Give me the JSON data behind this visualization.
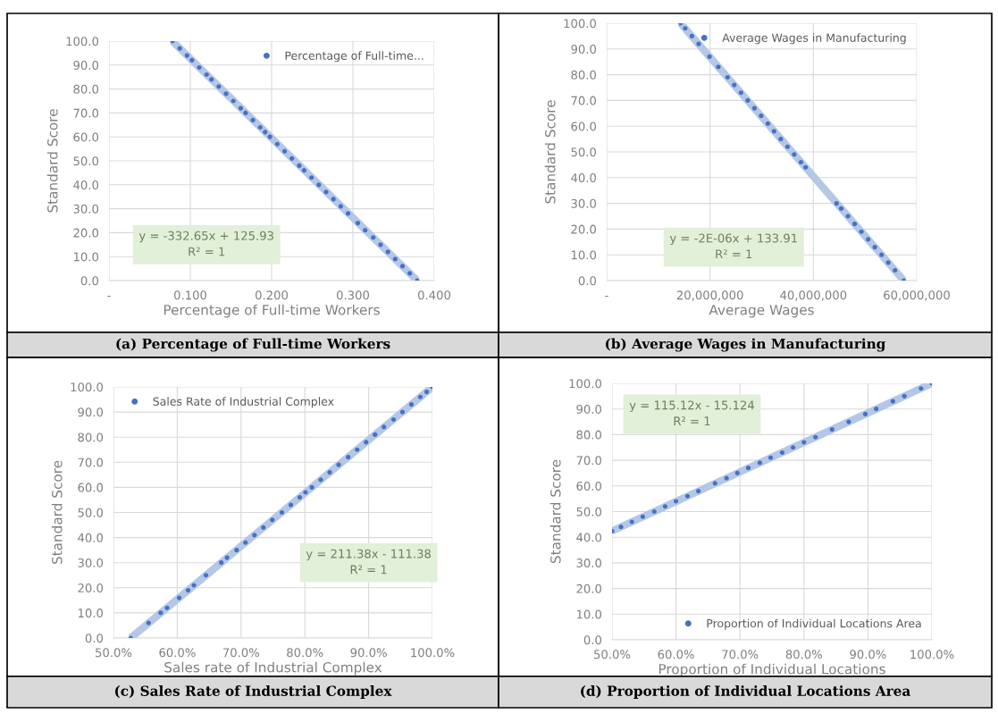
{
  "chart_data": [
    {
      "type": "scatter",
      "title": "(a) Percentage of Full-time Workers",
      "xlabel": "Percentage of Full-time Workers",
      "ylabel": "Standard Score",
      "xlim": [
        0,
        0.4
      ],
      "xticks": [
        {
          "value": 0,
          "label": "-"
        },
        {
          "value": 0.1,
          "label": "0.100"
        },
        {
          "value": 0.2,
          "label": "0.200"
        },
        {
          "value": 0.3,
          "label": "0.300"
        },
        {
          "value": 0.4,
          "label": "0.400"
        }
      ],
      "ylim": [
        0,
        100
      ],
      "yticks": [
        {
          "value": 0,
          "label": "0.0"
        },
        {
          "value": 10,
          "label": "10.0"
        },
        {
          "value": 20,
          "label": "20.0"
        },
        {
          "value": 30,
          "label": "30.0"
        },
        {
          "value": 40,
          "label": "40.0"
        },
        {
          "value": 50,
          "label": "50.0"
        },
        {
          "value": 60,
          "label": "60.0"
        },
        {
          "value": 70,
          "label": "70.0"
        },
        {
          "value": 80,
          "label": "80.0"
        },
        {
          "value": 90,
          "label": "90.0"
        },
        {
          "value": 100,
          "label": "100.0"
        }
      ],
      "grid": true,
      "legend": "top right",
      "marker": "circle",
      "annotations": [
        "y = -332.65x + 125.93",
        "R² = 1"
      ],
      "series": [
        {
          "type": "line",
          "marker": "none",
          "color": "#b4c7e7",
          "x": [
            0.078,
            0.379
          ],
          "values": [
            100,
            0
          ]
        },
        {
          "name": "Percentage of Full-time...",
          "color": "#4472c4",
          "x": [
            0.078,
            0.087,
            0.096,
            0.102,
            0.111,
            0.12,
            0.126,
            0.135,
            0.144,
            0.153,
            0.162,
            0.168,
            0.177,
            0.186,
            0.192,
            0.198,
            0.207,
            0.216,
            0.225,
            0.234,
            0.24,
            0.249,
            0.258,
            0.267,
            0.276,
            0.285,
            0.294,
            0.306,
            0.315,
            0.325,
            0.334,
            0.343,
            0.352,
            0.361,
            0.37,
            0.379
          ],
          "values": [
            100,
            97,
            94,
            92,
            89,
            86,
            84,
            81,
            78,
            75,
            72,
            70,
            67,
            64,
            62,
            60,
            57,
            54,
            51,
            48,
            46,
            43,
            40,
            37,
            34,
            31,
            28,
            24,
            21,
            18,
            15,
            12,
            9,
            6,
            3,
            0
          ]
        }
      ]
    },
    {
      "type": "scatter",
      "title": "(b) Average Wages in Manufacturing",
      "xlabel": "Average Wages",
      "ylabel": "Standard Score",
      "xlim": [
        0,
        60000000
      ],
      "xticks": [
        {
          "value": 0,
          "label": "-"
        },
        {
          "value": 20000000,
          "label": "20,000,000"
        },
        {
          "value": 40000000,
          "label": "40,000,000"
        },
        {
          "value": 60000000,
          "label": "60,000,000"
        }
      ],
      "ylim": [
        0,
        100
      ],
      "yticks": [
        {
          "value": 0,
          "label": "0.0"
        },
        {
          "value": 10,
          "label": "10.0"
        },
        {
          "value": 20,
          "label": "20.0"
        },
        {
          "value": 30,
          "label": "30.0"
        },
        {
          "value": 40,
          "label": "40.0"
        },
        {
          "value": 50,
          "label": "50.0"
        },
        {
          "value": 60,
          "label": "60.0"
        },
        {
          "value": 70,
          "label": "70.0"
        },
        {
          "value": 80,
          "label": "80.0"
        },
        {
          "value": 90,
          "label": "90.0"
        },
        {
          "value": 100,
          "label": "100.0"
        }
      ],
      "grid": true,
      "legend": "top right",
      "marker": "circle",
      "annotations": [
        "y = -2E-06x + 133.91",
        "R² = 1"
      ],
      "series": [
        {
          "type": "line",
          "marker": "none",
          "color": "#b4c7e7",
          "x": [
            14300000,
            57500000
          ],
          "values": [
            100,
            0
          ]
        },
        {
          "name": "Average Wages in Manufacturing",
          "color": "#4472c4",
          "x": [
            14300000,
            15200000,
            16500000,
            17800000,
            19900000,
            21600000,
            23400000,
            24700000,
            26000000,
            27300000,
            28600000,
            29900000,
            31200000,
            32400000,
            33700000,
            35000000,
            36300000,
            37600000,
            38500000,
            44500000,
            45400000,
            46700000,
            48000000,
            49300000,
            50600000,
            51900000,
            53200000,
            54500000,
            55800000,
            57500000
          ],
          "values": [
            100,
            98,
            95,
            92,
            87,
            83,
            79,
            76,
            73,
            70,
            67,
            64,
            61,
            58,
            55,
            52,
            49,
            46,
            44,
            30,
            28,
            25,
            22,
            19,
            16,
            13,
            10,
            7,
            4,
            0
          ]
        }
      ]
    },
    {
      "type": "scatter",
      "title": "(c) Sales Rate of Industrial Complex",
      "xlabel": "Sales rate of Industrial Complex",
      "ylabel": "Standard Score",
      "xlim": [
        0.5,
        1.0
      ],
      "xticks": [
        {
          "value": 0.5,
          "label": "50.0%"
        },
        {
          "value": 0.6,
          "label": "60.0%"
        },
        {
          "value": 0.7,
          "label": "70.0%"
        },
        {
          "value": 0.8,
          "label": "80.0%"
        },
        {
          "value": 0.9,
          "label": "90.0%"
        },
        {
          "value": 1.0,
          "label": "100.0%"
        }
      ],
      "ylim": [
        0,
        100
      ],
      "yticks": [
        {
          "value": 0,
          "label": "0.0"
        },
        {
          "value": 10,
          "label": "10.0"
        },
        {
          "value": 20,
          "label": "20.0"
        },
        {
          "value": 30,
          "label": "30.0"
        },
        {
          "value": 40,
          "label": "40.0"
        },
        {
          "value": 50,
          "label": "50.0"
        },
        {
          "value": 60,
          "label": "60.0"
        },
        {
          "value": 70,
          "label": "70.0"
        },
        {
          "value": 80,
          "label": "80.0"
        },
        {
          "value": 90,
          "label": "90.0"
        },
        {
          "value": 100,
          "label": "100.0"
        }
      ],
      "grid": true,
      "legend": "top left",
      "marker": "circle",
      "annotations": [
        "y = 211.38x - 111.38",
        "R² = 1"
      ],
      "series": [
        {
          "type": "line",
          "marker": "none",
          "color": "#b4c7e7",
          "x": [
            0.527,
            1.0
          ],
          "values": [
            0,
            100
          ]
        },
        {
          "name": "Sales Rate of Industrial Complex",
          "color": "#4472c4",
          "x": [
            0.527,
            0.555,
            0.574,
            0.584,
            0.603,
            0.617,
            0.626,
            0.645,
            0.669,
            0.678,
            0.693,
            0.707,
            0.721,
            0.735,
            0.749,
            0.764,
            0.778,
            0.792,
            0.801,
            0.811,
            0.825,
            0.839,
            0.853,
            0.868,
            0.882,
            0.896,
            0.91,
            0.924,
            0.939,
            0.953,
            0.967,
            0.981,
            0.991,
            1.0
          ],
          "values": [
            0,
            6,
            10,
            12,
            16,
            19,
            21,
            25,
            30,
            32,
            35,
            38,
            41,
            44,
            47,
            50,
            53,
            56,
            58,
            60,
            63,
            66,
            69,
            72,
            75,
            78,
            81,
            84,
            87,
            90,
            93,
            96,
            98,
            100
          ]
        }
      ]
    },
    {
      "type": "scatter",
      "title": "(d) Proportion of Individual Locations Area",
      "xlabel": "Proportion of Individual Locations",
      "ylabel": "Standard Score",
      "xlim": [
        0.5,
        1.0
      ],
      "xticks": [
        {
          "value": 0.5,
          "label": "50.0%"
        },
        {
          "value": 0.6,
          "label": "60.0%"
        },
        {
          "value": 0.7,
          "label": "70.0%"
        },
        {
          "value": 0.8,
          "label": "80.0%"
        },
        {
          "value": 0.9,
          "label": "90.0%"
        },
        {
          "value": 1.0,
          "label": "100.0%"
        }
      ],
      "ylim": [
        0,
        100
      ],
      "yticks": [
        {
          "value": 0,
          "label": "0.0"
        },
        {
          "value": 10,
          "label": "10.0"
        },
        {
          "value": 20,
          "label": "20.0"
        },
        {
          "value": 30,
          "label": "30.0"
        },
        {
          "value": 40,
          "label": "40.0"
        },
        {
          "value": 50,
          "label": "50.0"
        },
        {
          "value": 60,
          "label": "60.0"
        },
        {
          "value": 70,
          "label": "70.0"
        },
        {
          "value": 80,
          "label": "80.0"
        },
        {
          "value": 90,
          "label": "90.0"
        },
        {
          "value": 100,
          "label": "100.0"
        }
      ],
      "grid": true,
      "legend": "bottom right",
      "marker": "circle",
      "annotations": [
        "y = 115.12x - 15.124",
        "R² = 1"
      ],
      "series": [
        {
          "type": "line",
          "marker": "none",
          "color": "#b4c7e7",
          "x": [
            0.5,
            1.0
          ],
          "values": [
            42.4,
            100
          ]
        },
        {
          "name": "Proportion of Individual Locations Area",
          "color": "#4472c4",
          "x": [
            0.5,
            0.514,
            0.531,
            0.548,
            0.566,
            0.583,
            0.6,
            0.618,
            0.635,
            0.661,
            0.679,
            0.696,
            0.713,
            0.731,
            0.748,
            0.766,
            0.783,
            0.8,
            0.818,
            0.844,
            0.87,
            0.896,
            0.913,
            0.939,
            0.957,
            0.983,
            1.0
          ],
          "values": [
            42.4,
            44,
            46,
            48,
            50,
            52,
            54,
            56,
            58,
            61,
            63,
            65,
            67,
            69,
            71,
            73,
            75,
            77,
            79,
            82,
            85,
            88,
            90,
            93,
            95,
            98,
            100
          ]
        }
      ]
    }
  ]
}
